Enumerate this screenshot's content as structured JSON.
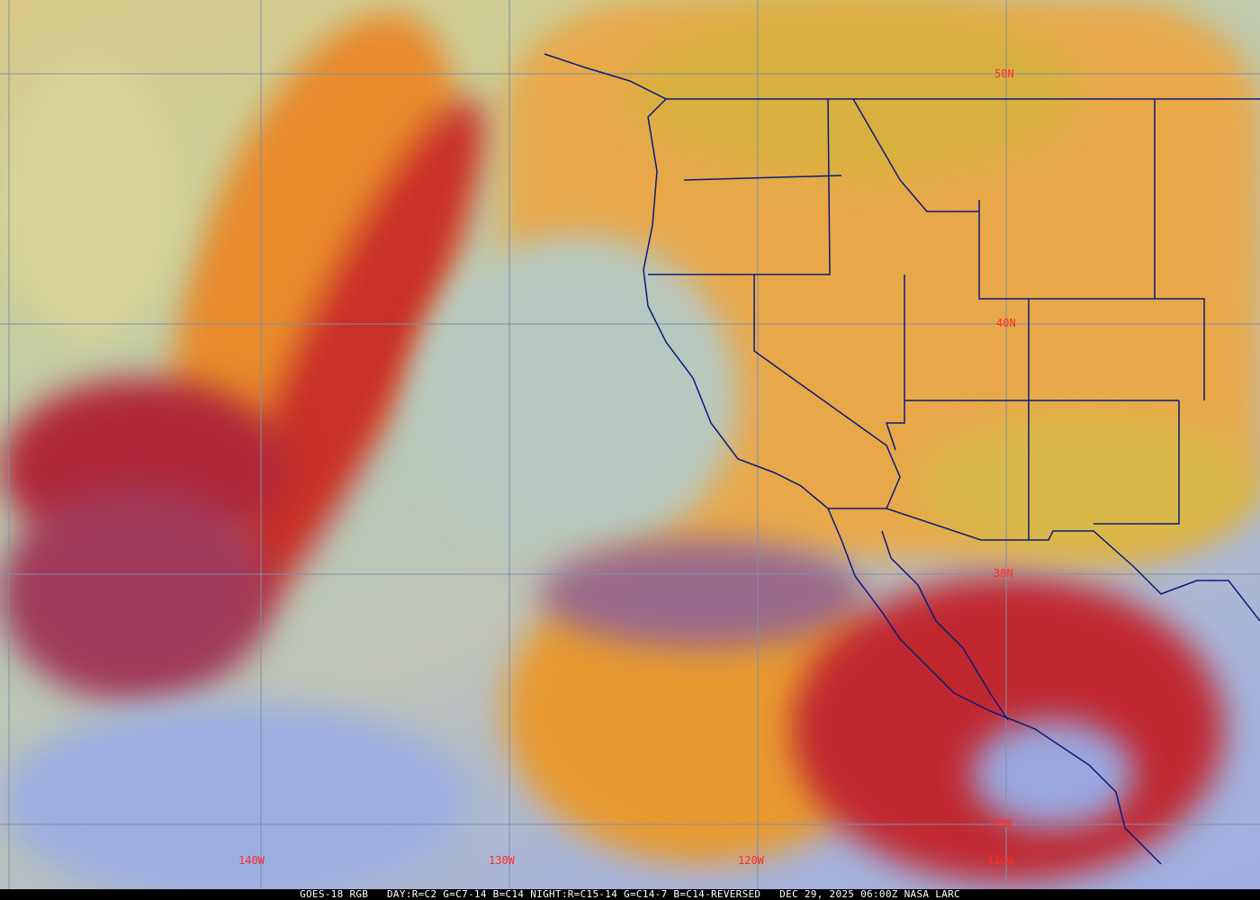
{
  "map": {
    "latitude_labels": [
      "50N",
      "40N",
      "30N",
      "20N"
    ],
    "longitude_labels": [
      "140W",
      "130W",
      "120W",
      "110W"
    ],
    "grid_color": "#7f8fa8",
    "label_color": "#ff2a2a",
    "boundary_color": "#0a1a7a"
  },
  "caption": {
    "product": "GOES-18 RGB",
    "recipe": "DAY:R=C2 G=C7-14 B=C14 NIGHT:R=C15-14 G=C14-7 B=C14-REVERSED",
    "timestamp": "DEC 29, 2025 06:00Z",
    "source": "NASA LARC"
  }
}
